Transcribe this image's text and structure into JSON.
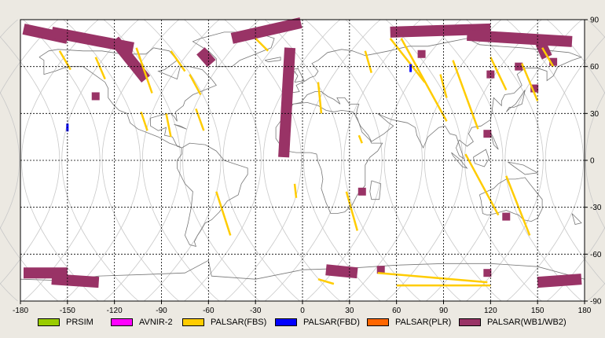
{
  "map": {
    "lon_range": [
      -180,
      180
    ],
    "lat_range": [
      -90,
      90
    ],
    "lon_ticks": [
      "-180",
      "-150",
      "-120",
      "-90",
      "-60",
      "-30",
      "0",
      "30",
      "60",
      "90",
      "120",
      "150",
      "180"
    ],
    "lat_ticks": [
      "90",
      "60",
      "30",
      "0",
      "-30",
      "-60",
      "-90"
    ],
    "background_color": "#ffffff",
    "grid": "dashed",
    "coastline_color": "#777777",
    "orbit_track_color": "#c8c8c8"
  },
  "legend": [
    {
      "label": "PRSIM",
      "color": "#99cc00"
    },
    {
      "label": "AVNIR-2",
      "color": "#ff00ff"
    },
    {
      "label": "PALSAR(FBS)",
      "color": "#ffcc00"
    },
    {
      "label": "PALSAR(FBD)",
      "color": "#0000ff"
    },
    {
      "label": "PALSAR(PLR)",
      "color": "#ff6600"
    },
    {
      "label": "PALSAR(WB1/WB2)",
      "color": "#993366"
    }
  ],
  "observations": {
    "wb_color": "#993366",
    "fbs_color": "#ffcc00",
    "fbd_color": "#0000ff",
    "wb_swaths": [
      {
        "from": [
          -178,
          84
        ],
        "to": [
          -150,
          78
        ]
      },
      {
        "from": [
          -160,
          82
        ],
        "to": [
          -108,
          72
        ]
      },
      {
        "from": [
          -120,
          77
        ],
        "to": [
          -100,
          52
        ]
      },
      {
        "from": [
          -65,
          70
        ],
        "to": [
          -58,
          62
        ]
      },
      {
        "from": [
          -1,
          88
        ],
        "to": [
          -45,
          78
        ]
      },
      {
        "from": [
          -8,
          72
        ],
        "to": [
          -12,
          2
        ]
      },
      {
        "from": [
          56,
          82
        ],
        "to": [
          120,
          84
        ]
      },
      {
        "from": [
          105,
          80
        ],
        "to": [
          172,
          76
        ]
      },
      {
        "from": [
          152,
          75
        ],
        "to": [
          156,
          66
        ]
      },
      {
        "from": [
          -178,
          -72
        ],
        "to": [
          -150,
          -72
        ]
      },
      {
        "from": [
          -160,
          -76
        ],
        "to": [
          -130,
          -78
        ]
      },
      {
        "from": [
          15,
          -70
        ],
        "to": [
          35,
          -72
        ]
      },
      {
        "from": [
          150,
          -78
        ],
        "to": [
          178,
          -76
        ]
      }
    ],
    "wb_patches": [
      {
        "lon": -132,
        "lat": 41
      },
      {
        "lon": 76,
        "lat": 68
      },
      {
        "lon": 120,
        "lat": 55
      },
      {
        "lon": 118,
        "lat": 17
      },
      {
        "lon": 148,
        "lat": 46
      },
      {
        "lon": 160,
        "lat": 63
      },
      {
        "lon": 138,
        "lat": 60
      },
      {
        "lon": 38,
        "lat": -20
      },
      {
        "lon": 130,
        "lat": -36
      },
      {
        "lon": 50,
        "lat": -70
      },
      {
        "lon": 118,
        "lat": -72
      }
    ],
    "fbs_tracks": [
      {
        "from": [
          -155,
          70
        ],
        "to": [
          -148,
          58
        ]
      },
      {
        "from": [
          -132,
          66
        ],
        "to": [
          -126,
          52
        ]
      },
      {
        "from": [
          -106,
          72
        ],
        "to": [
          -96,
          43
        ]
      },
      {
        "from": [
          -84,
          70
        ],
        "to": [
          -75,
          57
        ]
      },
      {
        "from": [
          -72,
          55
        ],
        "to": [
          -65,
          42
        ]
      },
      {
        "from": [
          -103,
          31
        ],
        "to": [
          -99,
          19
        ]
      },
      {
        "from": [
          -87,
          30
        ],
        "to": [
          -84,
          15
        ]
      },
      {
        "from": [
          -68,
          33
        ],
        "to": [
          -63,
          19
        ]
      },
      {
        "from": [
          -55,
          -20
        ],
        "to": [
          -46,
          -48
        ]
      },
      {
        "from": [
          -30,
          78
        ],
        "to": [
          -22,
          70
        ]
      },
      {
        "from": [
          10,
          50
        ],
        "to": [
          12,
          30
        ]
      },
      {
        "from": [
          40,
          70
        ],
        "to": [
          44,
          56
        ]
      },
      {
        "from": [
          36,
          16
        ],
        "to": [
          38,
          11
        ]
      },
      {
        "from": [
          -5,
          -15
        ],
        "to": [
          -4,
          -24
        ]
      },
      {
        "from": [
          56,
          78
        ],
        "to": [
          78,
          50
        ]
      },
      {
        "from": [
          63,
          78
        ],
        "to": [
          92,
          25
        ]
      },
      {
        "from": [
          88,
          55
        ],
        "to": [
          92,
          40
        ]
      },
      {
        "from": [
          96,
          64
        ],
        "to": [
          112,
          20
        ]
      },
      {
        "from": [
          120,
          66
        ],
        "to": [
          130,
          45
        ]
      },
      {
        "from": [
          140,
          62
        ],
        "to": [
          150,
          38
        ]
      },
      {
        "from": [
          153,
          72
        ],
        "to": [
          160,
          60
        ]
      },
      {
        "from": [
          104,
          4
        ],
        "to": [
          125,
          -35
        ]
      },
      {
        "from": [
          130,
          -10
        ],
        "to": [
          145,
          -48
        ]
      },
      {
        "from": [
          28,
          -20
        ],
        "to": [
          35,
          -45
        ]
      },
      {
        "from": [
          48,
          -72
        ],
        "to": [
          118,
          -78
        ]
      },
      {
        "from": [
          60,
          -80
        ],
        "to": [
          120,
          -80
        ]
      },
      {
        "from": [
          10,
          -76
        ],
        "to": [
          20,
          -79
        ]
      }
    ],
    "fbd_marks": [
      {
        "lon": 69,
        "lat": 59
      },
      {
        "lon": -150,
        "lat": 21
      }
    ]
  }
}
